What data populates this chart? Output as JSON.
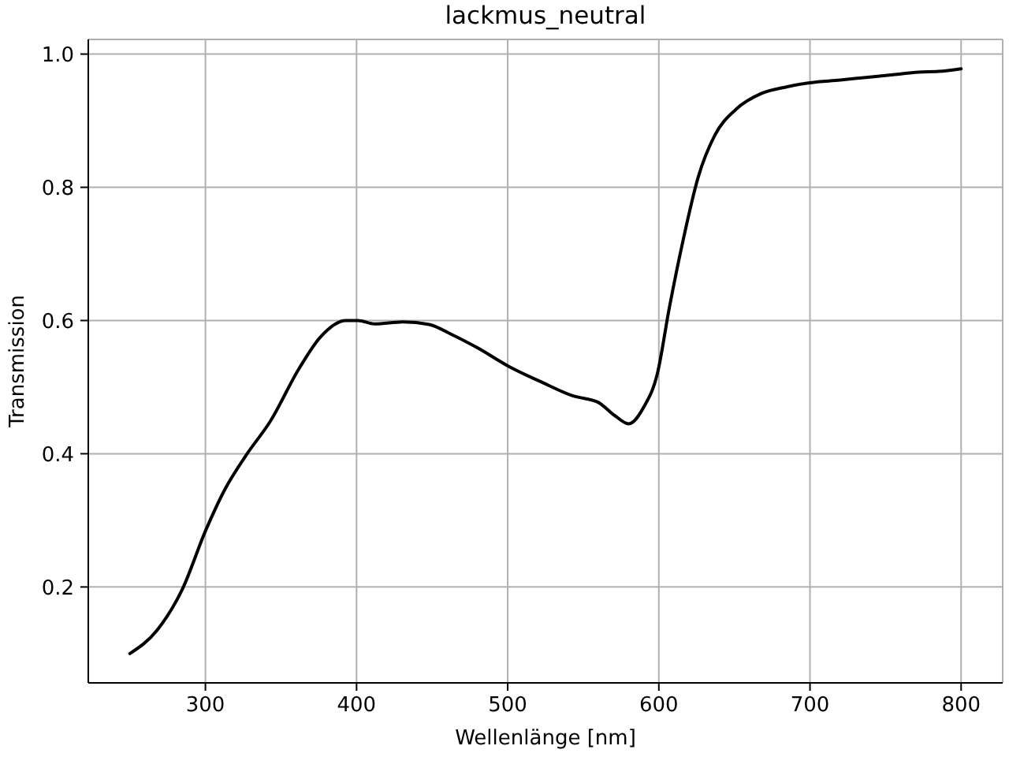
{
  "chart_data": {
    "type": "line",
    "title": "lackmus_neutral",
    "xlabel": "Wellenlänge [nm]",
    "ylabel": "Transmission",
    "x": [
      250,
      268,
      285,
      300,
      313,
      327,
      343,
      362,
      376,
      393,
      401,
      412,
      431,
      448,
      463,
      480,
      500,
      522,
      543,
      560,
      571,
      580,
      590,
      599,
      607,
      616,
      626,
      637,
      651,
      668,
      685,
      700,
      720,
      737,
      755,
      772,
      785,
      800
    ],
    "series": [
      {
        "color": "#000000",
        "values": [
          0.1,
          0.135,
          0.198,
          0.284,
          0.347,
          0.398,
          0.449,
          0.528,
          0.575,
          0.6,
          0.6,
          0.595,
          0.598,
          0.594,
          0.579,
          0.559,
          0.532,
          0.508,
          0.487,
          0.477,
          0.457,
          0.445,
          0.47,
          0.52,
          0.62,
          0.72,
          0.815,
          0.878,
          0.917,
          0.941,
          0.951,
          0.957,
          0.961,
          0.965,
          0.969,
          0.973,
          0.974,
          0.978
        ]
      }
    ],
    "xlim": [
      222.5,
      827.5
    ],
    "ylim": [
      0.056,
      1.022
    ],
    "xticks": [
      300,
      400,
      500,
      600,
      700,
      800
    ],
    "yticks": [
      0.2,
      0.4,
      0.6,
      0.8,
      {
        "value": 1,
        "label": "1.0"
      }
    ],
    "grid": true,
    "line_style": "solid",
    "marker": "none"
  }
}
